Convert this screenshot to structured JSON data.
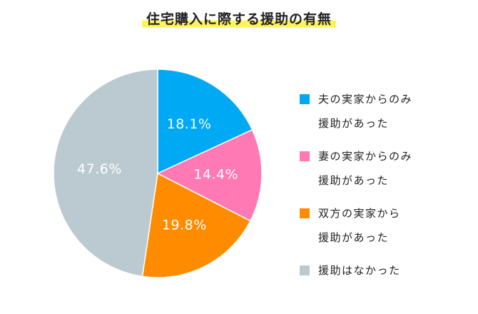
{
  "title": "住宅購入に際する援助の有無",
  "chart_data": {
    "type": "pie",
    "title": "住宅購入に際する援助の有無",
    "slices": [
      {
        "lines": [
          "夫の実家からのみ",
          "援助があった"
        ],
        "value": 18.1,
        "label": "18.1%",
        "color": "#00a9f4"
      },
      {
        "lines": [
          "妻の実家からのみ",
          "援助があった"
        ],
        "value": 14.4,
        "label": "14.4%",
        "color": "#ff79b4"
      },
      {
        "lines": [
          "双方の実家から",
          "援助があった"
        ],
        "value": 19.8,
        "label": "19.8%",
        "color": "#ff8c00"
      },
      {
        "lines": [
          "援助はなかった"
        ],
        "value": 47.6,
        "label": "47.6%",
        "color": "#bbcad1"
      }
    ],
    "start_angle": "12 o'clock",
    "direction": "clockwise",
    "legend_position": "right"
  }
}
